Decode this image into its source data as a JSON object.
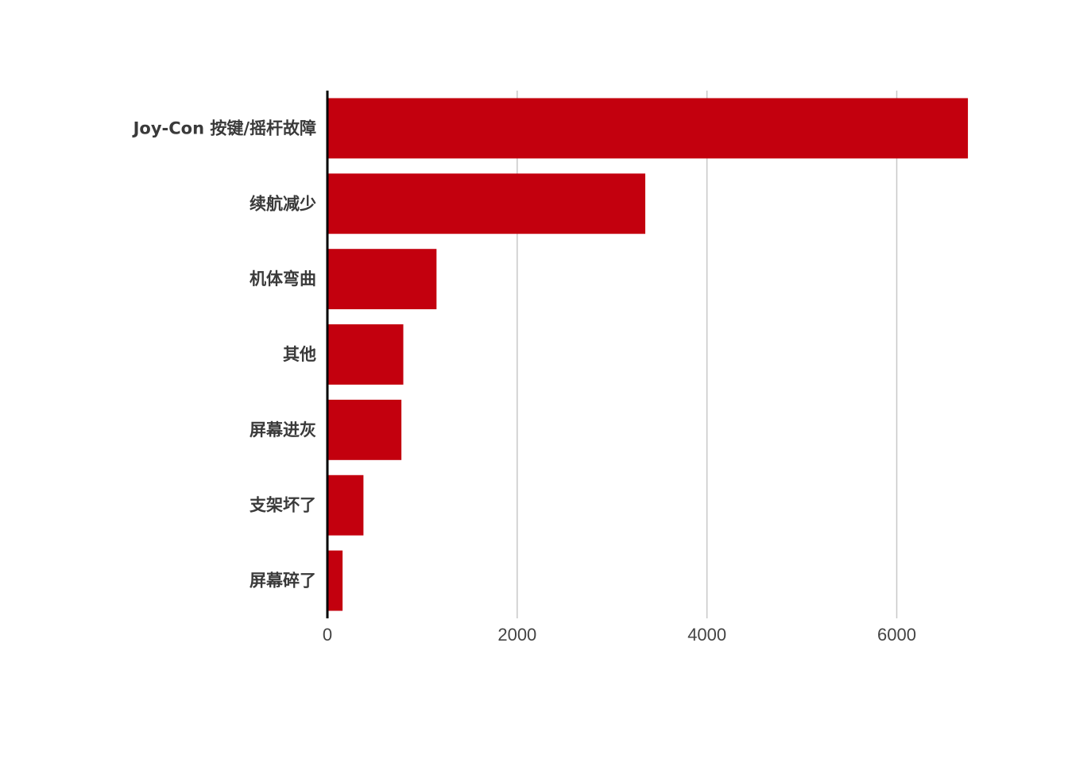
{
  "chart_data": {
    "type": "bar",
    "orientation": "horizontal",
    "title": "",
    "xlabel": "",
    "ylabel": "",
    "categories": [
      "Joy-Con 按键/摇杆故障",
      "续航减少",
      "机体弯曲",
      "其他",
      "屏幕进灰",
      "支架坏了",
      "屏幕碎了"
    ],
    "values": [
      6750,
      3350,
      1150,
      800,
      780,
      380,
      160
    ],
    "xlim": [
      0,
      6850
    ],
    "xticks": [
      0,
      2000,
      4000,
      6000
    ],
    "xtick_labels": [
      "0",
      "2000",
      "4000",
      "6000"
    ],
    "grid": "vertical",
    "legend": "none",
    "bar_color": "#c3000e"
  }
}
